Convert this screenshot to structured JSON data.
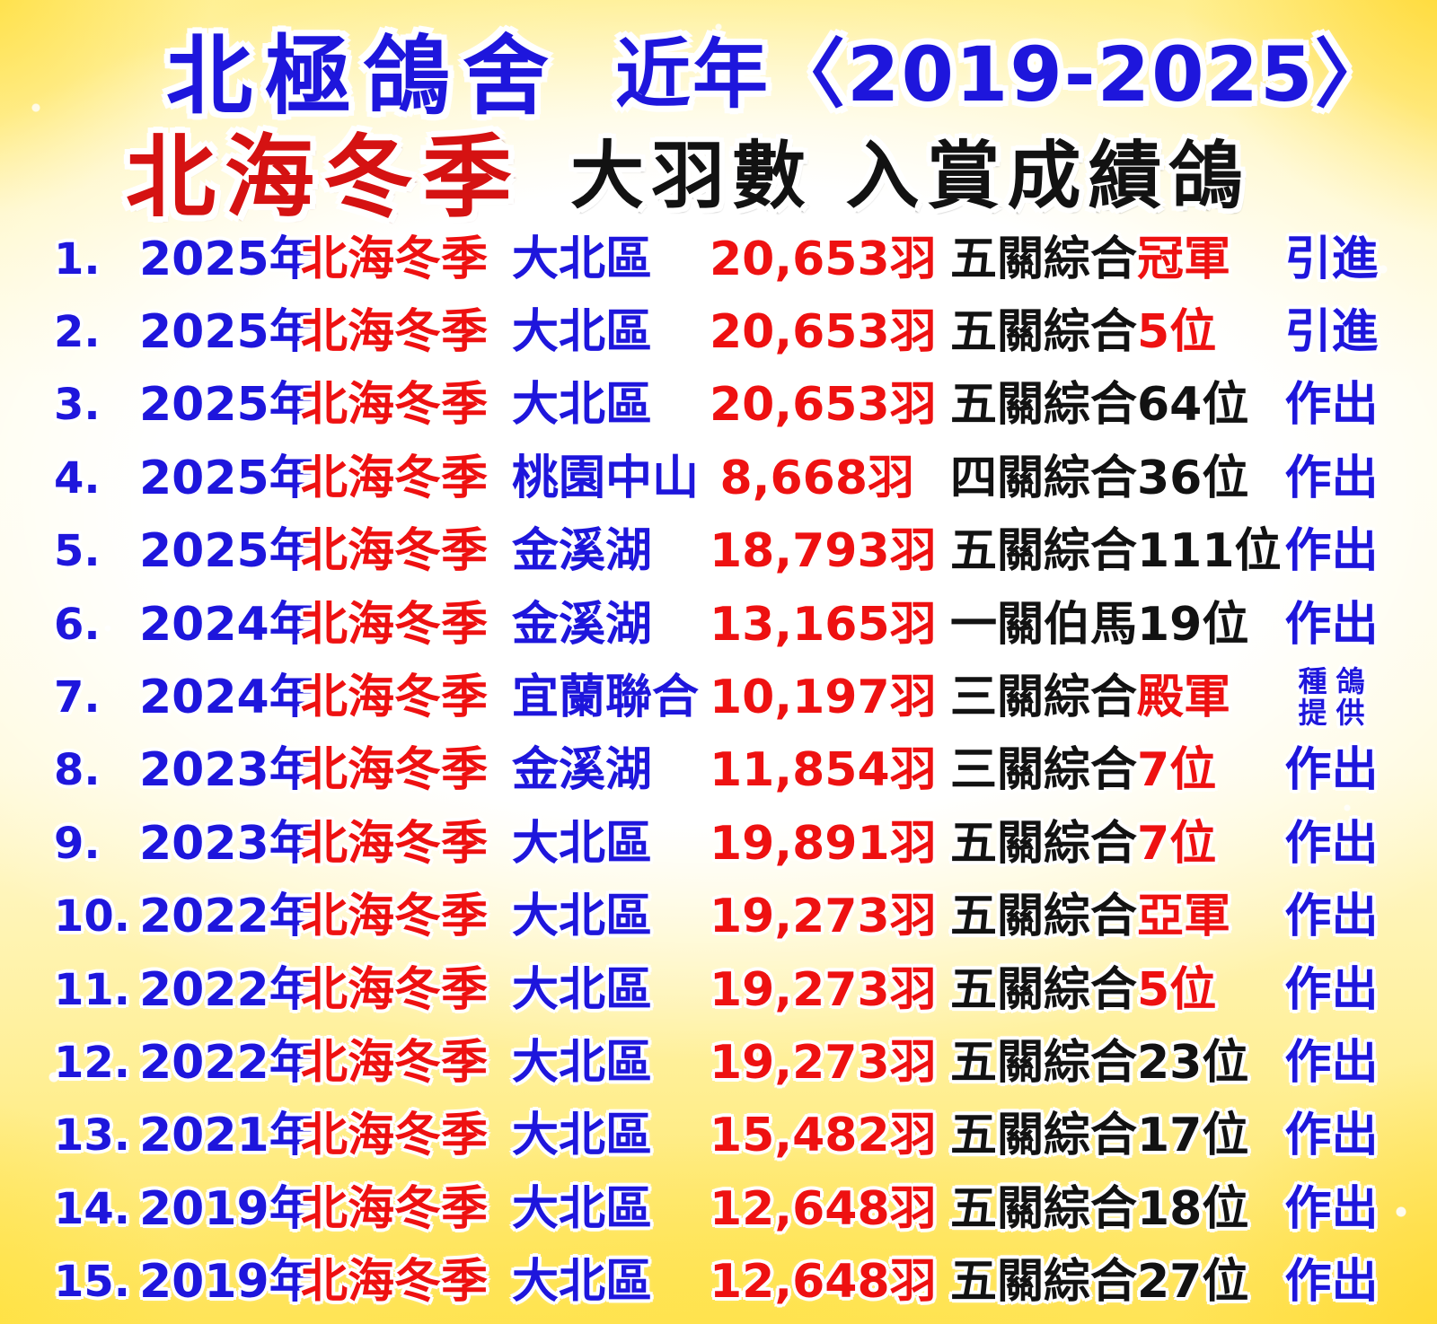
{
  "colors": {
    "blue": "#1e16dc",
    "red": "#ee1111",
    "black": "#121212",
    "gold_border": "#ffd92e",
    "background": "#ffffff"
  },
  "header": {
    "loft_name": "北極鴿舍",
    "period": "近年〈2019-2025〉",
    "event_title": "北海冬季",
    "subtitle": "大羽數 入賞成績鴿"
  },
  "rows": [
    {
      "num": "1.",
      "year": "2025年",
      "event": "北海冬季",
      "region": "大北區",
      "birds": "20,653羽",
      "result": "五關綜合",
      "result_hl": "冠軍",
      "source": "引進"
    },
    {
      "num": "2.",
      "year": "2025年",
      "event": "北海冬季",
      "region": "大北區",
      "birds": "20,653羽",
      "result": "五關綜合",
      "result_hl": "5位",
      "source": "引進"
    },
    {
      "num": "3.",
      "year": "2025年",
      "event": "北海冬季",
      "region": "大北區",
      "birds": "20,653羽",
      "result": "五關綜合64位",
      "result_hl": "",
      "source": "作出"
    },
    {
      "num": "4.",
      "year": "2025年",
      "event": "北海冬季",
      "region": "桃園中山",
      "birds": "8,668羽",
      "result": "四關綜合36位",
      "result_hl": "",
      "source": "作出"
    },
    {
      "num": "5.",
      "year": "2025年",
      "event": "北海冬季",
      "region": "金溪湖",
      "birds": "18,793羽",
      "result": "五關綜合111位",
      "result_hl": "",
      "source": "作出"
    },
    {
      "num": "6.",
      "year": "2024年",
      "event": "北海冬季",
      "region": "金溪湖",
      "birds": "13,165羽",
      "result": "一關伯馬19位",
      "result_hl": "",
      "source": "作出"
    },
    {
      "num": "7.",
      "year": "2024年",
      "event": "北海冬季",
      "region": "宜蘭聯合",
      "birds": "10,197羽",
      "result": "三關綜合",
      "result_hl": "殿軍",
      "source": "種鴿提供",
      "source_l1": "種鴿",
      "source_l2": "提供"
    },
    {
      "num": "8.",
      "year": "2023年",
      "event": "北海冬季",
      "region": "金溪湖",
      "birds": "11,854羽",
      "result": "三關綜合",
      "result_hl": "7位",
      "source": "作出"
    },
    {
      "num": "9.",
      "year": "2023年",
      "event": "北海冬季",
      "region": "大北區",
      "birds": "19,891羽",
      "result": "五關綜合",
      "result_hl": "7位",
      "source": "作出"
    },
    {
      "num": "10.",
      "year": "2022年",
      "event": "北海冬季",
      "region": "大北區",
      "birds": "19,273羽",
      "result": "五關綜合",
      "result_hl": "亞軍",
      "source": "作出"
    },
    {
      "num": "11.",
      "year": "2022年",
      "event": "北海冬季",
      "region": "大北區",
      "birds": "19,273羽",
      "result": "五關綜合",
      "result_hl": "5位",
      "source": "作出"
    },
    {
      "num": "12.",
      "year": "2022年",
      "event": "北海冬季",
      "region": "大北區",
      "birds": "19,273羽",
      "result": "五關綜合23位",
      "result_hl": "",
      "source": "作出"
    },
    {
      "num": "13.",
      "year": "2021年",
      "event": "北海冬季",
      "region": "大北區",
      "birds": "15,482羽",
      "result": "五關綜合17位",
      "result_hl": "",
      "source": "作出"
    },
    {
      "num": "14.",
      "year": "2019年",
      "event": "北海冬季",
      "region": "大北區",
      "birds": "12,648羽",
      "result": "五關綜合18位",
      "result_hl": "",
      "source": "作出"
    },
    {
      "num": "15.",
      "year": "2019年",
      "event": "北海冬季",
      "region": "大北區",
      "birds": "12,648羽",
      "result": "五關綜合27位",
      "result_hl": "",
      "source": "作出"
    }
  ]
}
